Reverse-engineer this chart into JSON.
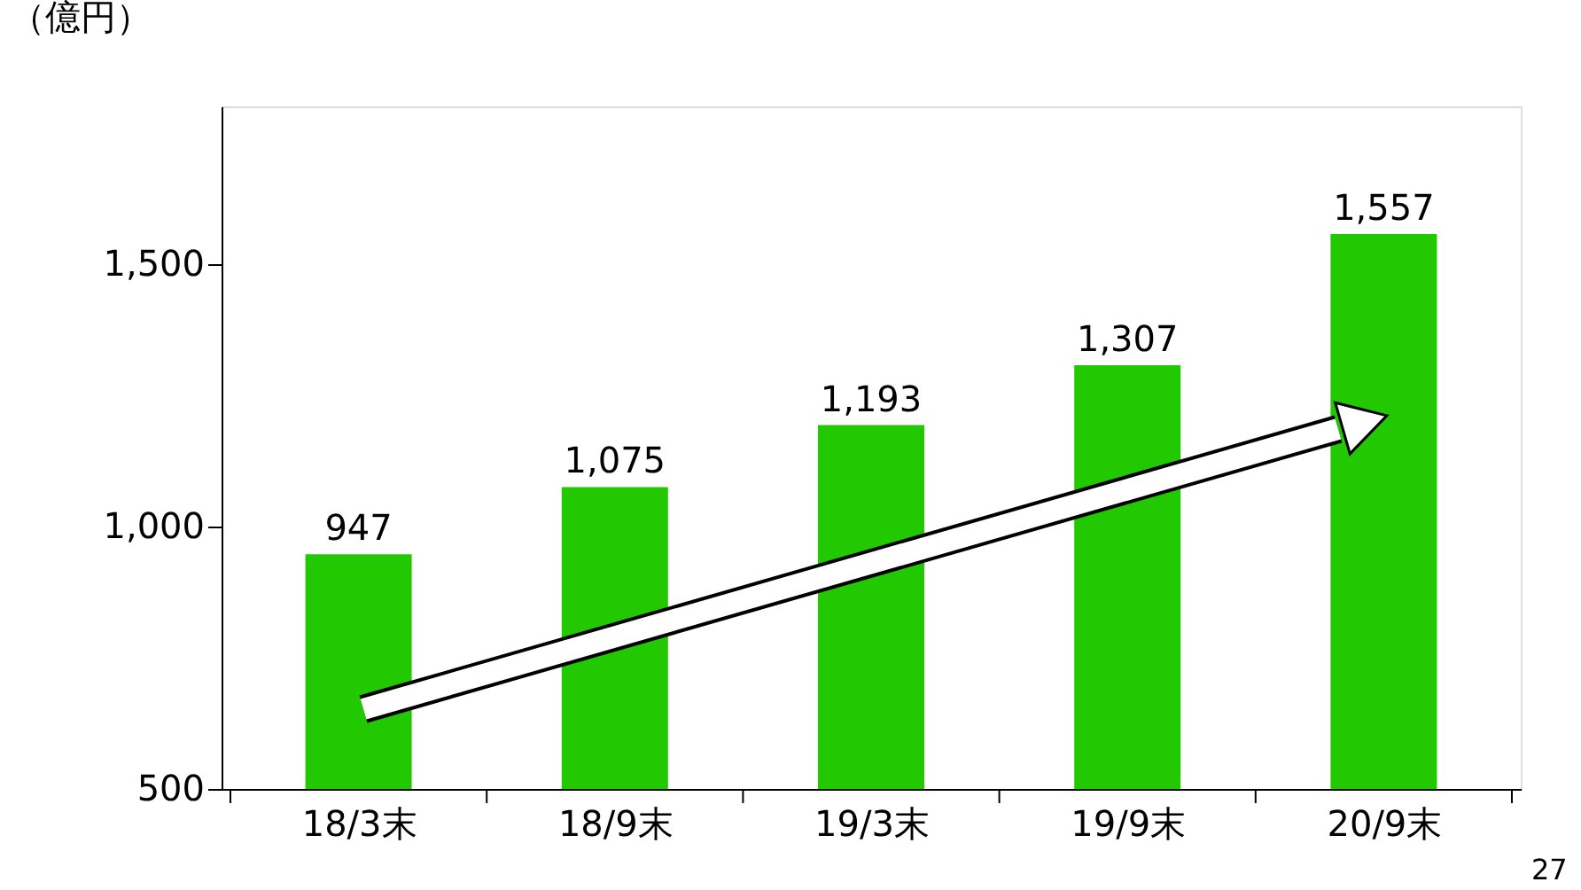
{
  "chart_data": {
    "type": "bar",
    "ylabel": "（億円）",
    "categories": [
      "18/3末",
      "18/9末",
      "19/3末",
      "19/9末",
      "20/9末"
    ],
    "values": [
      947,
      1075,
      1193,
      1307,
      1557
    ],
    "color": "#22c800",
    "value_labels": [
      "947",
      "1,075",
      "1,193",
      "1,307",
      "1,557"
    ],
    "ylim": [
      500,
      1800
    ],
    "yticks": [
      500,
      {
        "value": 1000,
        "label": "1,000"
      },
      {
        "value": 1500,
        "label": "1,500"
      }
    ],
    "grid": false,
    "annotations": [
      "27"
    ]
  }
}
